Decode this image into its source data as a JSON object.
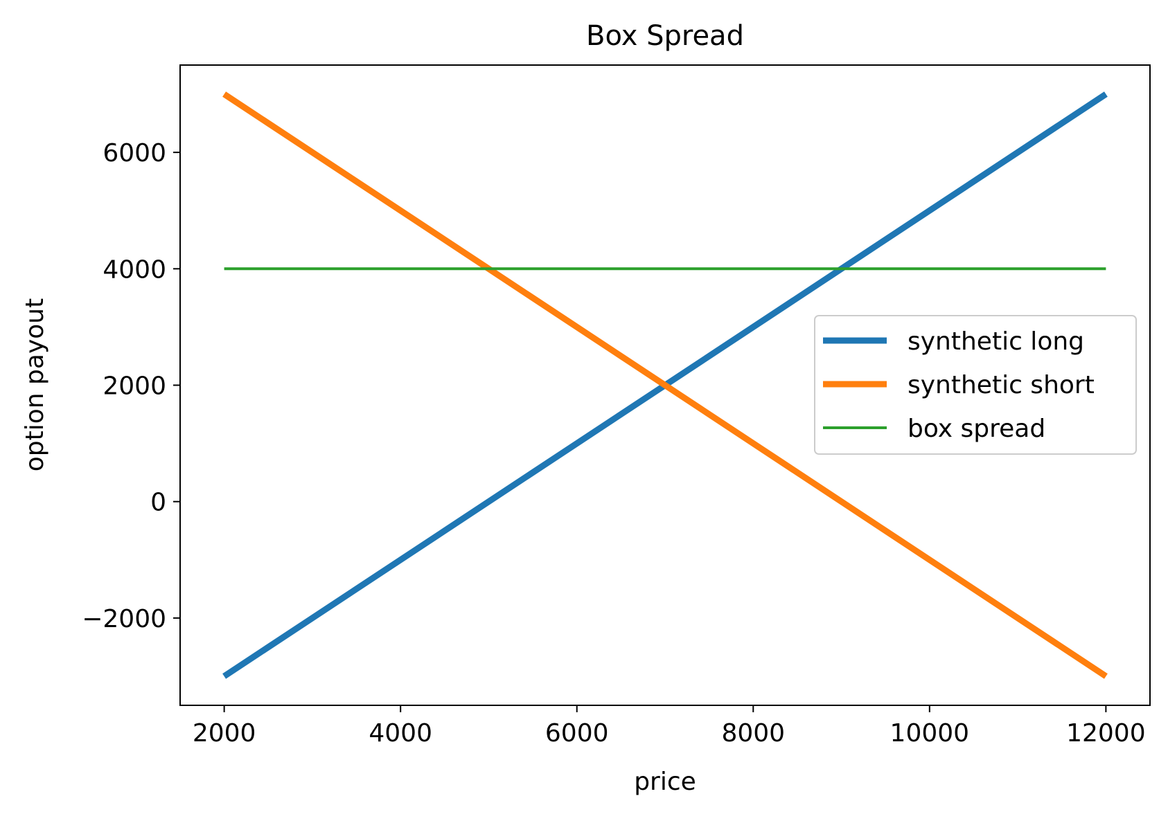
{
  "chart_data": {
    "type": "line",
    "title": "Box Spread",
    "xlabel": "price",
    "ylabel": "option payout",
    "xlim": [
      1500,
      12500
    ],
    "ylim": [
      -3500,
      7500
    ],
    "xticks": [
      2000,
      4000,
      6000,
      8000,
      10000,
      12000
    ],
    "yticks": [
      -2000,
      0,
      2000,
      4000,
      6000
    ],
    "xtick_labels": [
      "2000",
      "4000",
      "6000",
      "8000",
      "10000",
      "12000"
    ],
    "ytick_labels": [
      "−2000",
      "0",
      "2000",
      "4000",
      "6000"
    ],
    "grid": false,
    "legend_position": "center-right",
    "series": [
      {
        "name": "synthetic long",
        "color": "#1f77b4",
        "x": [
          2000,
          12000
        ],
        "y": [
          -3000,
          7000
        ]
      },
      {
        "name": "synthetic short",
        "color": "#ff7f0e",
        "x": [
          2000,
          12000
        ],
        "y": [
          7000,
          -3000
        ]
      },
      {
        "name": "box spread",
        "color": "#2ca02c",
        "x": [
          2000,
          12000
        ],
        "y": [
          4000,
          4000
        ]
      }
    ]
  }
}
